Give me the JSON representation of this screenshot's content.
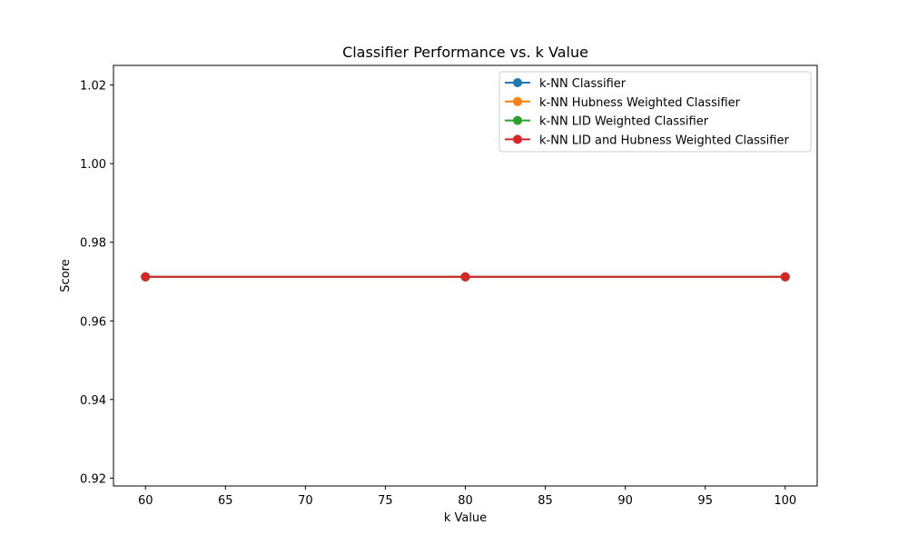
{
  "chart_data": {
    "type": "line",
    "title": "Classifier Performance vs. k Value",
    "xlabel": "k Value",
    "ylabel": "Score",
    "x": [
      60,
      80,
      100
    ],
    "xlim": [
      58,
      102
    ],
    "ylim": [
      0.918,
      1.025
    ],
    "xticks": [
      60,
      65,
      70,
      75,
      80,
      85,
      90,
      95,
      100
    ],
    "yticks": [
      0.92,
      0.94,
      0.96,
      0.98,
      1.0,
      1.02
    ],
    "ytick_labels": [
      "0.92",
      "0.94",
      "0.96",
      "0.98",
      "1.00",
      "1.02"
    ],
    "grid": false,
    "legend_position": "top-right",
    "series": [
      {
        "name": "k-NN Classifier",
        "color": "#1f77b4",
        "values": [
          0.9712,
          0.9712,
          0.9712
        ]
      },
      {
        "name": "k-NN Hubness Weighted Classifier",
        "color": "#ff7f0e",
        "values": [
          0.9712,
          0.9712,
          0.9712
        ]
      },
      {
        "name": "k-NN LID Weighted Classifier",
        "color": "#2ca02c",
        "values": [
          0.9712,
          0.9712,
          0.9712
        ]
      },
      {
        "name": "k-NN LID and Hubness Weighted Classifier",
        "color": "#d62728",
        "values": [
          0.9712,
          0.9712,
          0.9712
        ]
      }
    ]
  }
}
